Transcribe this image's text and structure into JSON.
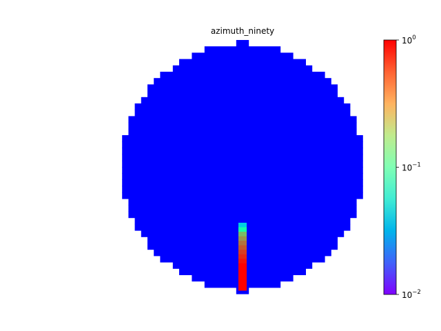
{
  "chart_data": {
    "type": "heatmap",
    "title": "azimuth_ninety",
    "xlabel": "",
    "ylabel": "",
    "plot_shape": "disk",
    "axes_visible": false,
    "grid": false,
    "background_value": 0.01,
    "hot_column": {
      "description": "vertical strip of high values below centre",
      "values_top_to_bottom": [
        0.04,
        0.12,
        0.3,
        0.4,
        0.5,
        0.6,
        0.7,
        0.8,
        0.9,
        1,
        1,
        1,
        1,
        1,
        1
      ]
    },
    "colormap": "rainbow",
    "colorbar": {
      "scale": "log",
      "min": 0.01,
      "max": 1,
      "ticks": [
        {
          "value": 0.01,
          "base": "10",
          "exp": "−2"
        },
        {
          "value": 0.1,
          "base": "10",
          "exp": "−1"
        },
        {
          "value": 1,
          "base": "10",
          "exp": "0"
        }
      ],
      "placement": "right"
    }
  }
}
